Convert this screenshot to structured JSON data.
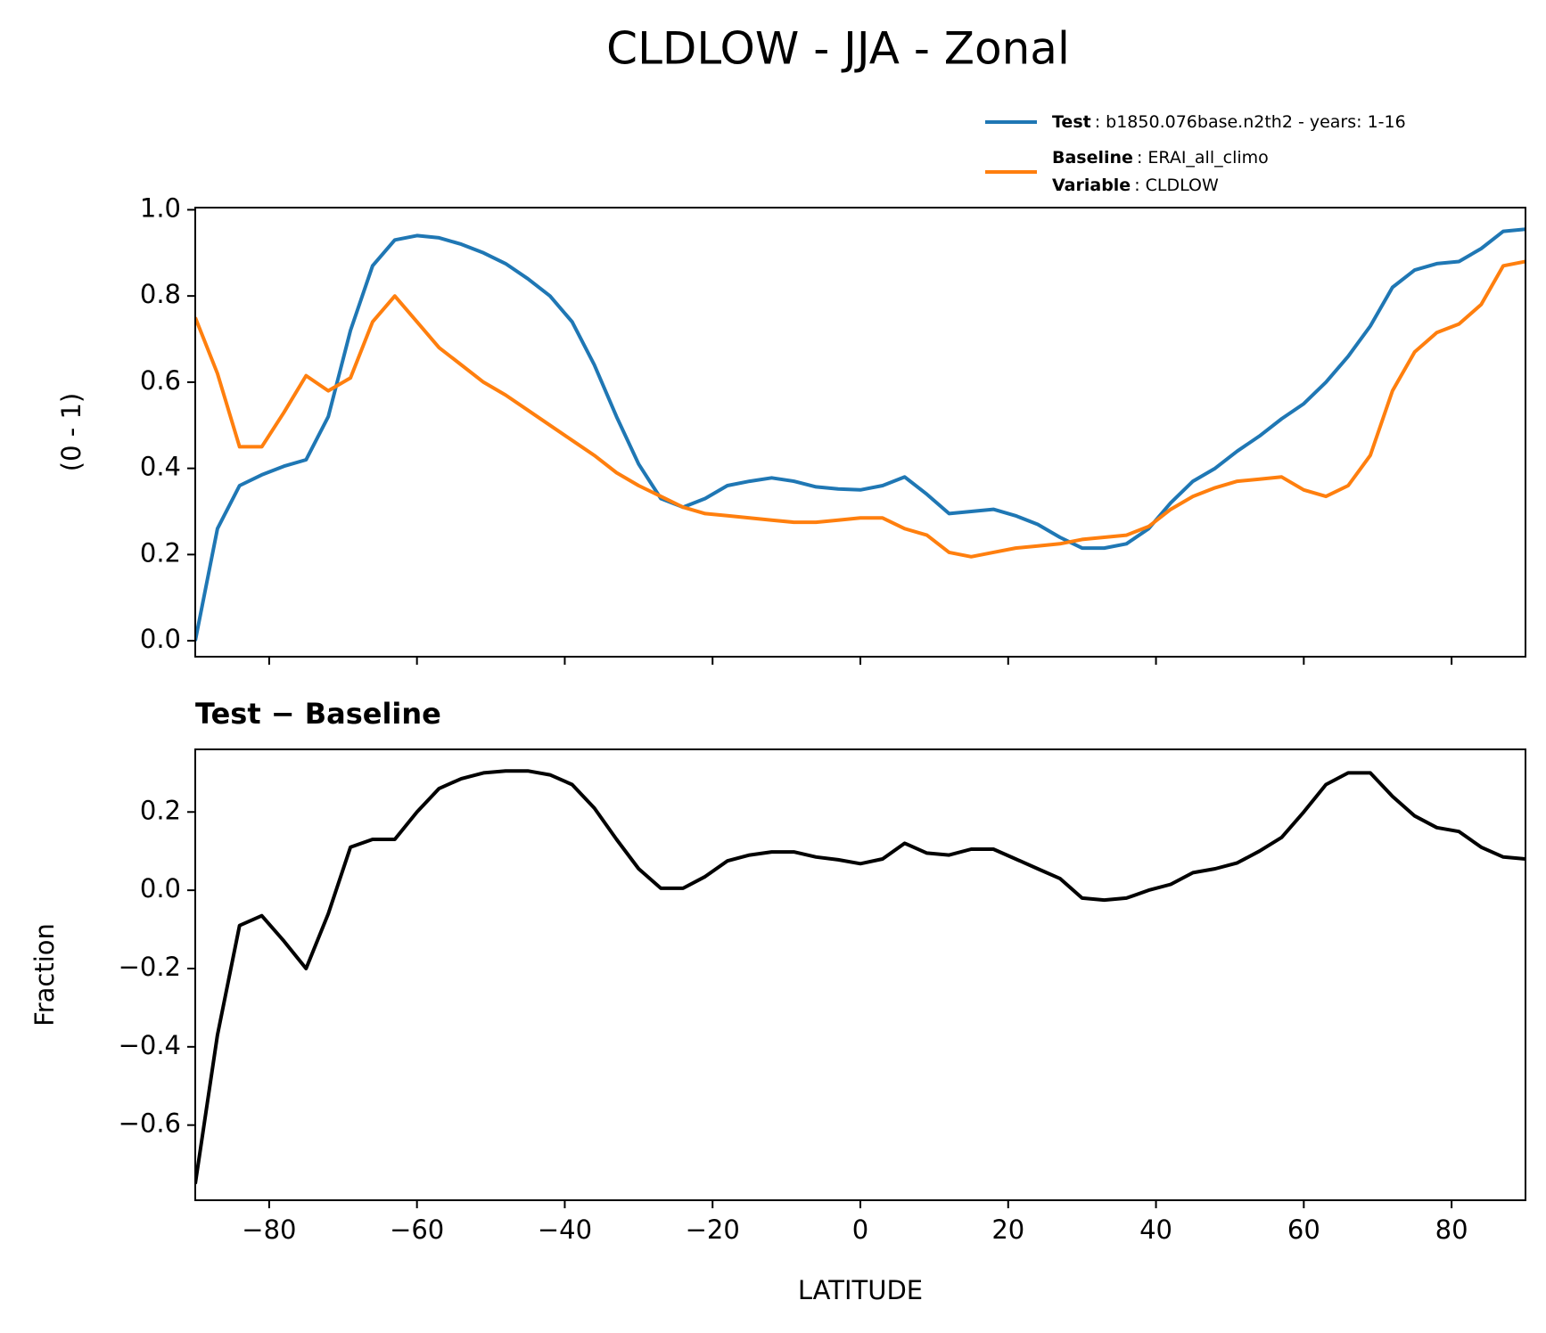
{
  "title": "CLDLOW - JJA - Zonal",
  "chart_data": [
    {
      "type": "line",
      "y_label": "(0 - 1)",
      "x": [
        -90,
        -87,
        -84,
        -81,
        -78,
        -75,
        -72,
        -69,
        -66,
        -63,
        -60,
        -57,
        -54,
        -51,
        -48,
        -45,
        -42,
        -39,
        -36,
        -33,
        -30,
        -27,
        -24,
        -21,
        -18,
        -15,
        -12,
        -9,
        -6,
        -3,
        0,
        3,
        6,
        9,
        12,
        15,
        18,
        21,
        24,
        27,
        30,
        33,
        36,
        39,
        42,
        45,
        48,
        51,
        54,
        57,
        60,
        63,
        66,
        69,
        72,
        75,
        78,
        81,
        84,
        87,
        90
      ],
      "series": [
        {
          "name": "Test",
          "description": ": b1850.076base.n2th2 - years: 1-16",
          "color": "#1f77b4",
          "values": [
            0.0,
            0.26,
            0.36,
            0.385,
            0.405,
            0.42,
            0.52,
            0.72,
            0.87,
            0.93,
            0.94,
            0.935,
            0.92,
            0.9,
            0.875,
            0.84,
            0.8,
            0.74,
            0.64,
            0.52,
            0.41,
            0.33,
            0.31,
            0.33,
            0.36,
            0.37,
            0.378,
            0.37,
            0.357,
            0.352,
            0.35,
            0.36,
            0.38,
            0.34,
            0.295,
            0.3,
            0.305,
            0.29,
            0.27,
            0.24,
            0.215,
            0.215,
            0.225,
            0.26,
            0.32,
            0.37,
            0.4,
            0.44,
            0.475,
            0.515,
            0.55,
            0.6,
            0.66,
            0.73,
            0.82,
            0.86,
            0.875,
            0.88,
            0.91,
            0.95,
            0.955
          ]
        },
        {
          "name": "Baseline",
          "description": ": ERAI_all_climo",
          "variable_label": "Variable",
          "variable": ": CLDLOW",
          "color": "#ff7f0e",
          "values": [
            0.75,
            0.62,
            0.45,
            0.45,
            0.53,
            0.615,
            0.58,
            0.61,
            0.74,
            0.8,
            0.74,
            0.68,
            0.64,
            0.6,
            0.57,
            0.535,
            0.5,
            0.465,
            0.43,
            0.39,
            0.36,
            0.335,
            0.31,
            0.295,
            0.29,
            0.285,
            0.28,
            0.275,
            0.275,
            0.28,
            0.285,
            0.285,
            0.26,
            0.245,
            0.205,
            0.195,
            0.205,
            0.215,
            0.22,
            0.225,
            0.235,
            0.24,
            0.245,
            0.265,
            0.305,
            0.335,
            0.355,
            0.37,
            0.375,
            0.38,
            0.35,
            0.335,
            0.36,
            0.43,
            0.58,
            0.67,
            0.715,
            0.735,
            0.78,
            0.87,
            0.88
          ]
        }
      ],
      "xlim": [
        -90,
        90
      ],
      "xticks": [
        -80,
        -60,
        -40,
        -20,
        0,
        20,
        40,
        60,
        80
      ],
      "ylim": [
        -0.037,
        1.005
      ],
      "yticks": [
        {
          "value": 0,
          "label": "0.0"
        },
        {
          "value": 0.2,
          "label": "0.2"
        },
        {
          "value": 0.4,
          "label": "0.4"
        },
        {
          "value": 0.6,
          "label": "0.6"
        },
        {
          "value": 0.8,
          "label": "0.8"
        },
        {
          "value": 1,
          "label": "1.0"
        }
      ]
    },
    {
      "type": "line",
      "subtitle": "Test − Baseline",
      "y_label": "Fraction",
      "x_label": "LATITUDE",
      "x": [
        -90,
        -87,
        -84,
        -81,
        -78,
        -75,
        -72,
        -69,
        -66,
        -63,
        -60,
        -57,
        -54,
        -51,
        -48,
        -45,
        -42,
        -39,
        -36,
        -33,
        -30,
        -27,
        -24,
        -21,
        -18,
        -15,
        -12,
        -9,
        -6,
        -3,
        0,
        3,
        6,
        9,
        12,
        15,
        18,
        21,
        24,
        27,
        30,
        33,
        36,
        39,
        42,
        45,
        48,
        51,
        54,
        57,
        60,
        63,
        66,
        69,
        72,
        75,
        78,
        81,
        84,
        87,
        90
      ],
      "series": [
        {
          "color": "#000000",
          "values": [
            -0.75,
            -0.37,
            -0.09,
            -0.065,
            -0.13,
            -0.2,
            -0.06,
            0.11,
            0.13,
            0.13,
            0.2,
            0.26,
            0.285,
            0.3,
            0.305,
            0.305,
            0.295,
            0.27,
            0.21,
            0.13,
            0.055,
            0.005,
            0.005,
            0.035,
            0.075,
            0.09,
            0.098,
            0.098,
            0.085,
            0.078,
            0.068,
            0.08,
            0.12,
            0.095,
            0.09,
            0.105,
            0.105,
            0.08,
            0.055,
            0.03,
            -0.02,
            -0.025,
            -0.02,
            0.0,
            0.015,
            0.045,
            0.055,
            0.07,
            0.1,
            0.135,
            0.2,
            0.27,
            0.3,
            0.3,
            0.24,
            0.19,
            0.16,
            0.15,
            0.11,
            0.085,
            0.08
          ]
        }
      ],
      "xlim": [
        -90,
        90
      ],
      "xticks": [
        {
          "value": -80,
          "label": "−80"
        },
        {
          "value": -60,
          "label": "−60"
        },
        {
          "value": -40,
          "label": "−40"
        },
        {
          "value": -20,
          "label": "−20"
        },
        {
          "value": 0,
          "label": "0"
        },
        {
          "value": 20,
          "label": "20"
        },
        {
          "value": 40,
          "label": "40"
        },
        {
          "value": 60,
          "label": "60"
        },
        {
          "value": 80,
          "label": "80"
        }
      ],
      "ylim": [
        -0.792,
        0.36
      ],
      "yticks": [
        {
          "value": -0.6,
          "label": "−0.6"
        },
        {
          "value": -0.4,
          "label": "−0.4"
        },
        {
          "value": -0.2,
          "label": "−0.2"
        },
        {
          "value": 0,
          "label": "0.0"
        },
        {
          "value": 0.2,
          "label": "0.2"
        }
      ]
    }
  ]
}
